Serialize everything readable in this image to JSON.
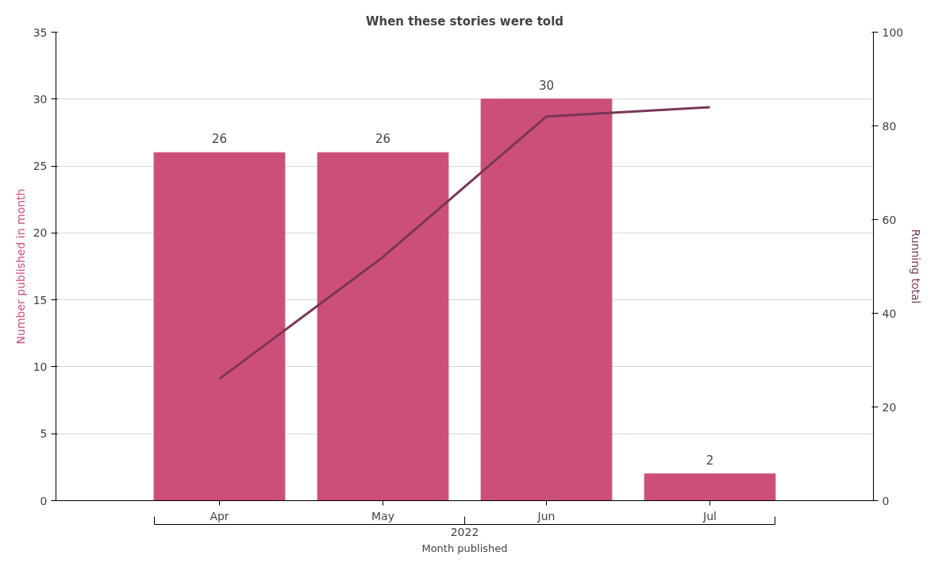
{
  "chart_data": {
    "type": "bar",
    "title": "When these stories were told",
    "xlabel": "Month published",
    "ylabel": "Number published in month",
    "y2label": "Running total",
    "categories": [
      "Apr",
      "May",
      "Jun",
      "Jul"
    ],
    "series": [
      {
        "color": "#cc4f7a",
        "values": [
          26,
          26,
          30,
          2
        ],
        "value_labels": [
          "26",
          "26",
          "30",
          "2"
        ]
      },
      {
        "type": "line",
        "axis": "y2",
        "color": "#7a3657",
        "values": [
          26,
          52,
          82,
          84
        ]
      }
    ],
    "ylim": [
      0,
      35
    ],
    "yticks": [
      0,
      5,
      10,
      15,
      20,
      25,
      30,
      35
    ],
    "y2lim": [
      0,
      100
    ],
    "y2ticks": [
      0,
      20,
      40,
      60,
      80,
      100
    ],
    "grid": "y",
    "marker": "none",
    "line_style": "solid",
    "annotations": [
      "2022"
    ]
  }
}
